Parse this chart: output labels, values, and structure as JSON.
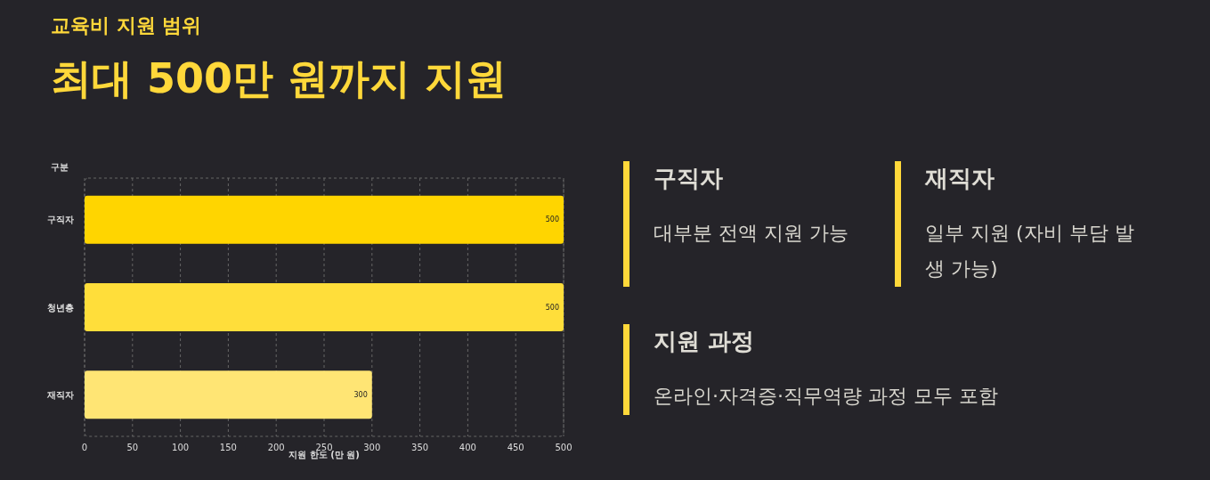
{
  "chart_data": [
    {
      "type": "bar",
      "orientation": "horizontal",
      "subtitle": "교육비 지원 범위",
      "title": "최대 500만 원까지 지원",
      "ylabel": "구분",
      "xlabel": "지원 한도 (만 원)",
      "categories": [
        "구직자",
        "청년층",
        "재직자"
      ],
      "values": [
        500,
        500,
        300
      ],
      "colors": [
        "#ffd500",
        "#ffde3a",
        "#ffe574"
      ],
      "xlim": [
        0,
        500
      ],
      "xticks": [
        0,
        50,
        100,
        150,
        200,
        250,
        300,
        350,
        400,
        450,
        500
      ],
      "grid": "x",
      "data_labels": true
    },
    {
      "type": "other",
      "annotations": [
        "구직자",
        "대부분 전액 지원 가능",
        "재직자",
        "일부 지원 (자비 부담 발생 가능)",
        "지원 과정",
        "온라인·자격증·직무역량 과정 모두 포함"
      ]
    }
  ]
}
